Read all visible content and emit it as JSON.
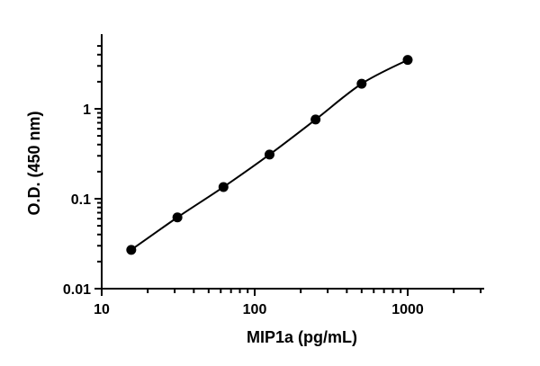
{
  "chart_data": {
    "type": "scatter",
    "xlabel": "MIP1a (pg/mL)",
    "ylabel": "O.D. (450 nm)",
    "x_scale": "log",
    "y_scale": "log",
    "xlim": [
      10,
      3000
    ],
    "ylim": [
      0.01,
      5
    ],
    "x_ticks": [
      10,
      100,
      1000
    ],
    "x_tick_labels": [
      "10",
      "100",
      "1000"
    ],
    "y_ticks": [
      0.01,
      0.1,
      1
    ],
    "y_tick_labels": [
      "0.01",
      "0.1",
      "1"
    ],
    "grid": false,
    "legend": "none",
    "series": [
      {
        "x": [
          15.6,
          31.25,
          62.5,
          125,
          250,
          500,
          1000
        ],
        "y": [
          0.027,
          0.062,
          0.135,
          0.31,
          0.76,
          1.9,
          3.5
        ],
        "marker": "circle",
        "fit_curve": true,
        "color": "#000000"
      }
    ]
  }
}
